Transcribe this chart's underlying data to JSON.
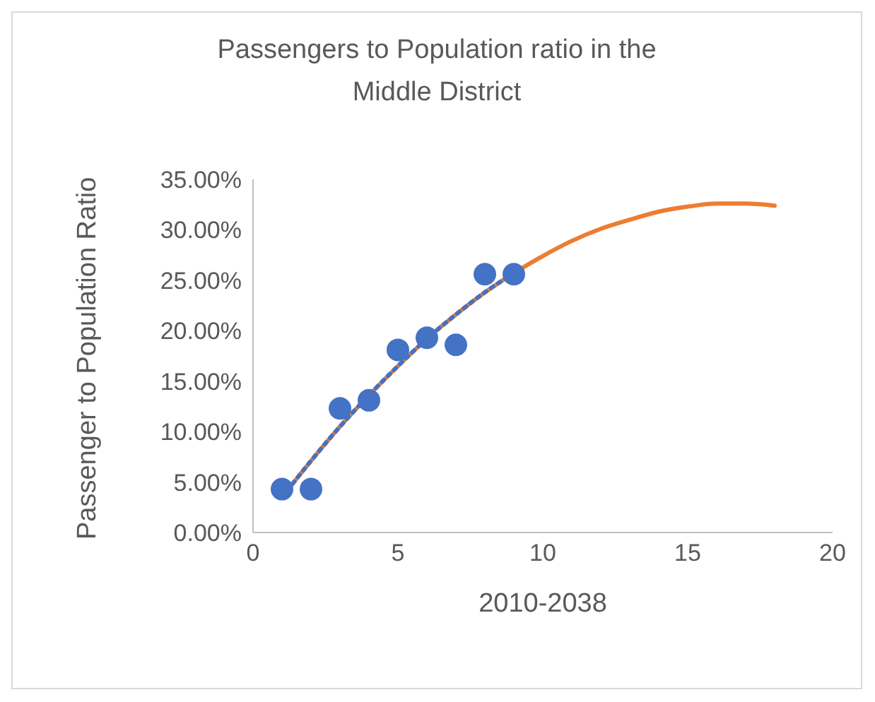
{
  "chart_data": {
    "type": "scatter",
    "title": "Passengers to Population ratio in the Middle District",
    "xlabel": "2010-2038",
    "ylabel": "Passenger to Population Ratio",
    "xlim": [
      0,
      20
    ],
    "xticks": [
      0,
      5,
      10,
      15,
      20
    ],
    "ylim": [
      0,
      35
    ],
    "yticks": [
      {
        "value": 0,
        "label": "0.00%"
      },
      {
        "value": 5,
        "label": "5.00%"
      },
      {
        "value": 10,
        "label": "10.00%"
      },
      {
        "value": 15,
        "label": "15.00%"
      },
      {
        "value": 20,
        "label": "20.00%"
      },
      {
        "value": 25,
        "label": "25.00%"
      },
      {
        "value": 30,
        "label": "30.00%"
      },
      {
        "value": 35,
        "label": "35.00%"
      }
    ],
    "grid": false,
    "legend": false,
    "series": [
      {
        "type": "line",
        "color": "#ed7d31",
        "line_style": "solid",
        "marker": "none",
        "x": [
          1,
          2,
          3,
          4,
          5,
          6,
          7,
          8,
          9,
          10,
          11,
          12,
          13,
          14,
          15,
          16,
          17,
          18
        ],
        "values": [
          3.5,
          7.1,
          10.5,
          13.6,
          16.5,
          19.2,
          21.6,
          23.8,
          25.7,
          27.4,
          28.9,
          30.1,
          31.0,
          31.8,
          32.3,
          32.6,
          32.6,
          32.4
        ]
      },
      {
        "type": "line",
        "color": "#4472c4",
        "line_style": "dotted",
        "marker": "none",
        "x": [
          1,
          2,
          3,
          4,
          5,
          6,
          7,
          8,
          9
        ],
        "values": [
          3.5,
          7.1,
          10.5,
          13.6,
          16.5,
          19.2,
          21.6,
          23.8,
          25.7
        ]
      },
      {
        "color": "#4472c4",
        "marker": "circle",
        "x": [
          1,
          2,
          3,
          4,
          5,
          6,
          7,
          8,
          9
        ],
        "values": [
          4.3,
          4.3,
          12.3,
          13.1,
          18.1,
          19.3,
          18.6,
          25.6,
          25.6
        ]
      }
    ]
  }
}
